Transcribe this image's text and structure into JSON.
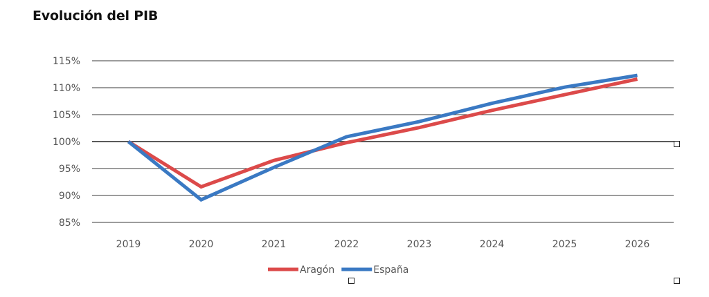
{
  "chart_data": {
    "type": "line",
    "title": "Evolución del PIB",
    "xlabel": "",
    "ylabel": "",
    "categories": [
      "2019",
      "2020",
      "2021",
      "2022",
      "2023",
      "2024",
      "2025",
      "2026"
    ],
    "ylim": [
      85,
      115
    ],
    "yticks": [
      85,
      90,
      95,
      100,
      105,
      110,
      115
    ],
    "ytick_labels": [
      "85%",
      "90%",
      "95%",
      "100%",
      "105%",
      "110%",
      "115%"
    ],
    "grid": "horizontal",
    "reference_line": 100,
    "legend_position": "bottom-center",
    "series": [
      {
        "name": "Aragón",
        "color": "#dc4a4a",
        "values": [
          100,
          91.6,
          96.5,
          99.8,
          102.6,
          105.8,
          108.7,
          111.6
        ]
      },
      {
        "name": "España",
        "color": "#3a79c3",
        "values": [
          100,
          89.2,
          95.2,
          100.9,
          103.7,
          107.1,
          110.1,
          112.3
        ]
      }
    ]
  }
}
